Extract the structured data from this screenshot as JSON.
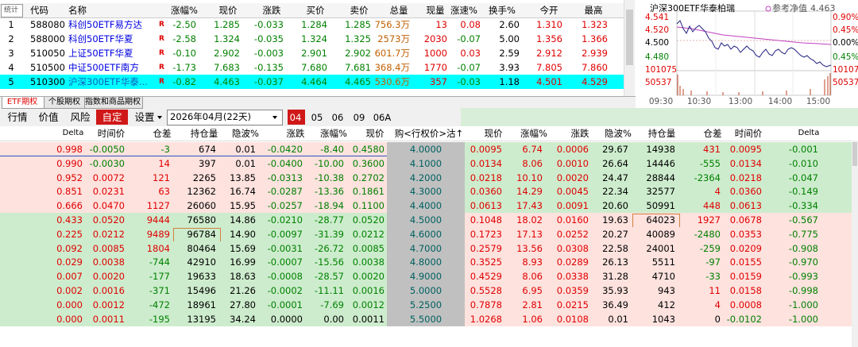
{
  "watchlist": {
    "header": [
      "统计",
      "代码",
      "名称",
      "涨幅%",
      "现价",
      "涨跌",
      "买价",
      "卖价",
      "总量",
      "现量",
      "涨速%",
      "换手%",
      "今开",
      "最高"
    ],
    "rows": [
      [
        "1",
        "588080",
        "科创50ETF易方达",
        "R",
        "-2.50",
        "1.285",
        "-0.033",
        "1.284",
        "1.285",
        "756.3万",
        "13",
        "0.08",
        "2.60",
        "1.310",
        "1.323"
      ],
      [
        "2",
        "588000",
        "科创50ETF华夏",
        "R",
        "-2.58",
        "1.324",
        "-0.035",
        "1.324",
        "1.325",
        "2573万",
        "2030",
        "-0.07",
        "5.00",
        "1.356",
        "1.366"
      ],
      [
        "3",
        "510050",
        "上证50ETF华夏",
        "R",
        "-0.10",
        "2.902",
        "-0.003",
        "2.901",
        "2.902",
        "601.7万",
        "1000",
        "0.03",
        "2.59",
        "2.912",
        "2.939"
      ],
      [
        "4",
        "510500",
        "中证500ETF南方",
        "R",
        "-1.73",
        "7.683",
        "-0.135",
        "7.680",
        "7.681",
        "368.4万",
        "1770",
        "-0.07",
        "3.93",
        "7.805",
        "7.860"
      ],
      [
        "5",
        "510300",
        "沪深300ETF华泰...",
        "R",
        "-0.82",
        "4.463",
        "-0.037",
        "4.464",
        "4.465",
        "530.6万",
        "357",
        "-0.03",
        "1.18",
        "4.501",
        "4.529"
      ]
    ]
  },
  "minichart": {
    "title": "沪深300ETF华泰柏瑞",
    "legend": "参考净值",
    "legend_value": "4.463",
    "left_axis": [
      "4.541",
      "4.520",
      "4.500",
      "4.480",
      "101075",
      "50537"
    ],
    "right_axis": [
      "0.90%",
      "0.45%",
      "0.00%",
      "0.45%",
      "101075",
      "50537"
    ],
    "time_axis": [
      "09:30",
      "10:30",
      "13:00",
      "14:00",
      "15:00"
    ]
  },
  "tabs": [
    "ETF期权",
    "个股期权",
    "指数和商品期权"
  ],
  "toolbar": {
    "buttons": [
      "行情",
      "价值",
      "风险",
      "自定",
      "设置"
    ],
    "expiry": "2026年04月(22天)",
    "months": [
      "04",
      "05",
      "06",
      "09",
      "06A"
    ]
  },
  "options": {
    "header": [
      "Delta",
      "时间价",
      "仓差",
      "持仓量",
      "隐波%",
      "涨跌",
      "涨幅%",
      "现价",
      "购<行权价>沽↑",
      "现价",
      "涨幅%",
      "涨跌",
      "隐波%",
      "持仓量",
      "仓差",
      "时间价",
      "Delta"
    ],
    "rows": [
      [
        "0.998",
        "-0.0050",
        "-3",
        "674",
        "0.01",
        "-0.0420",
        "-8.40",
        "0.4580",
        "4.0000",
        "0.0095",
        "6.74",
        "0.0006",
        "29.67",
        "14938",
        "431",
        "0.0095",
        "-0.001"
      ],
      [
        "0.990",
        "-0.0030",
        "14",
        "397",
        "0.01",
        "-0.0400",
        "-10.00",
        "0.3600",
        "4.1000",
        "0.0134",
        "8.06",
        "0.0010",
        "26.64",
        "14446",
        "-555",
        "0.0134",
        "-0.010"
      ],
      [
        "0.952",
        "0.0072",
        "121",
        "2265",
        "13.85",
        "-0.0313",
        "-10.38",
        "0.2702",
        "4.2000",
        "0.0218",
        "10.10",
        "0.0020",
        "24.47",
        "28844",
        "-2364",
        "0.0218",
        "-0.047"
      ],
      [
        "0.851",
        "0.0231",
        "63",
        "12362",
        "16.74",
        "-0.0287",
        "-13.36",
        "0.1861",
        "4.3000",
        "0.0360",
        "14.29",
        "0.0045",
        "22.34",
        "32577",
        "4",
        "0.0360",
        "-0.149"
      ],
      [
        "0.666",
        "0.0470",
        "1127",
        "26060",
        "15.95",
        "-0.0257",
        "-18.94",
        "0.1100",
        "4.4000",
        "0.0613",
        "17.43",
        "0.0091",
        "20.60",
        "50991",
        "448",
        "0.0613",
        "-0.334"
      ],
      [
        "0.433",
        "0.0520",
        "9444",
        "76580",
        "14.86",
        "-0.0210",
        "-28.77",
        "0.0520",
        "4.5000",
        "0.1048",
        "18.02",
        "0.0160",
        "19.63",
        "64023",
        "1927",
        "0.0678",
        "-0.567"
      ],
      [
        "0.225",
        "0.0212",
        "9489",
        "96784",
        "14.90",
        "-0.0097",
        "-31.39",
        "0.0212",
        "4.6000",
        "0.1723",
        "17.13",
        "0.0252",
        "20.27",
        "40089",
        "-2480",
        "0.0353",
        "-0.775"
      ],
      [
        "0.092",
        "0.0085",
        "1804",
        "80464",
        "15.69",
        "-0.0031",
        "-26.72",
        "0.0085",
        "4.7000",
        "0.2579",
        "13.56",
        "0.0308",
        "22.58",
        "24001",
        "-259",
        "0.0209",
        "-0.908"
      ],
      [
        "0.029",
        "0.0038",
        "-744",
        "42910",
        "16.99",
        "-0.0007",
        "-15.56",
        "0.0038",
        "4.8000",
        "0.3525",
        "8.93",
        "0.0289",
        "26.13",
        "5511",
        "-97",
        "0.0155",
        "-0.970"
      ],
      [
        "0.007",
        "0.0020",
        "-177",
        "19633",
        "18.63",
        "-0.0008",
        "-28.57",
        "0.0020",
        "4.9000",
        "0.4529",
        "8.06",
        "0.0338",
        "31.28",
        "4710",
        "-33",
        "0.0159",
        "-0.993"
      ],
      [
        "0.002",
        "0.0016",
        "-371",
        "15496",
        "21.26",
        "-0.0002",
        "-11.11",
        "0.0016",
        "5.0000",
        "0.5528",
        "6.95",
        "0.0359",
        "35.93",
        "943",
        "11",
        "0.0158",
        "-0.998"
      ],
      [
        "0.000",
        "0.0012",
        "-472",
        "18961",
        "27.80",
        "-0.0001",
        "-7.69",
        "0.0012",
        "5.2500",
        "0.7878",
        "2.81",
        "0.0215",
        "36.49",
        "412",
        "4",
        "0.0008",
        "-1.000"
      ],
      [
        "0.000",
        "0.0011",
        "-195",
        "13195",
        "34.24",
        "0.0000",
        "0.00",
        "0.0011",
        "5.5000",
        "1.0268",
        "1.06",
        "0.0108",
        "0.01",
        "1043",
        "0",
        "-0.0102",
        "-1.000"
      ]
    ]
  }
}
